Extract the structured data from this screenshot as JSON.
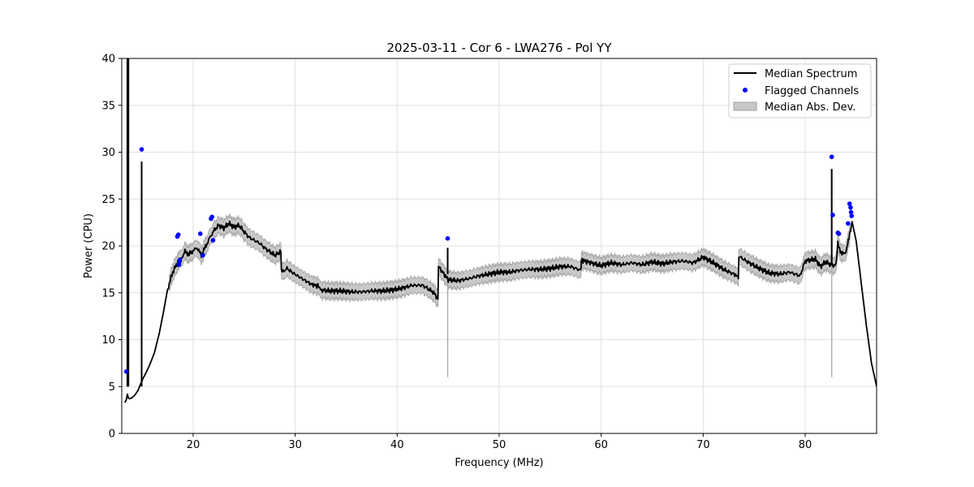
{
  "chart_data": {
    "type": "line",
    "title": "2025-03-11 - Cor 6 - LWA276 - Pol YY",
    "xlabel": "Frequency (MHz)",
    "ylabel": "Power (CPU)",
    "xlim": [
      13,
      87
    ],
    "ylim": [
      0,
      40
    ],
    "xticks": [
      20,
      30,
      40,
      50,
      60,
      70,
      80
    ],
    "yticks": [
      0,
      5,
      10,
      15,
      20,
      25,
      30,
      35,
      40
    ],
    "grid": true,
    "legend_position": "top-right",
    "colors": {
      "median": "#000000",
      "flagged": "#0000ff",
      "mad_fill": "#c8c8c8",
      "mad_edge": "#a0a0a0",
      "grid": "#e0e0e0"
    },
    "series": [
      {
        "name": "Median Spectrum",
        "kind": "line",
        "x": [
          13.3,
          13.45,
          13.55,
          13.65,
          13.75,
          14.0,
          14.3,
          14.6,
          14.85,
          15.0,
          15.05,
          15.3,
          15.7,
          16.2,
          16.7,
          17.1,
          17.5,
          18.0,
          18.5,
          18.8,
          19.2,
          19.6,
          20.0,
          20.4,
          20.8,
          21.2,
          21.6,
          22.0,
          22.5,
          23.0,
          23.5,
          24.0,
          24.5,
          25.0,
          25.5,
          26.0,
          26.5,
          27.0,
          27.5,
          28.0,
          28.6,
          28.65,
          29.2,
          29.8,
          30.4,
          31.0,
          31.6,
          32.3,
          32.5,
          33.5,
          34.5,
          35.5,
          36.5,
          37.5,
          38.5,
          39.5,
          40.5,
          41.5,
          42.5,
          43.5,
          44.0,
          44.05,
          45.0,
          46.0,
          47.0,
          48.0,
          49.0,
          50.0,
          51.0,
          52.0,
          53.0,
          54.0,
          55.0,
          56.0,
          57.0,
          58.0,
          58.05,
          59.0,
          60.0,
          61.0,
          62.0,
          63.0,
          64.0,
          65.0,
          66.0,
          67.0,
          68.0,
          69.0,
          70.0,
          71.0,
          72.0,
          73.0,
          73.45,
          73.5,
          74.5,
          75.5,
          76.5,
          77.5,
          78.5,
          79.5,
          80.0,
          81.0,
          81.5,
          82.0,
          82.5,
          83.0,
          83.2,
          83.6,
          84.0,
          84.3,
          84.6,
          85.0,
          85.5,
          86.0,
          86.5,
          87.0
        ],
        "values": [
          3.3,
          3.6,
          4.2,
          3.8,
          3.7,
          3.8,
          4.1,
          4.6,
          5.3,
          5.6,
          5.8,
          6.3,
          7.2,
          8.6,
          10.8,
          13.0,
          15.4,
          17.2,
          18.3,
          18.6,
          19.4,
          19.1,
          19.5,
          19.8,
          19.0,
          19.9,
          20.8,
          21.6,
          22.2,
          21.9,
          22.4,
          22.0,
          22.2,
          21.5,
          20.9,
          20.6,
          20.3,
          19.8,
          19.4,
          19.0,
          19.4,
          17.2,
          17.6,
          17.1,
          16.7,
          16.3,
          15.9,
          15.7,
          15.3,
          15.2,
          15.2,
          15.1,
          15.1,
          15.2,
          15.2,
          15.3,
          15.5,
          15.8,
          15.8,
          15.1,
          14.4,
          17.8,
          16.4,
          16.3,
          16.5,
          16.8,
          17.0,
          17.2,
          17.2,
          17.4,
          17.5,
          17.5,
          17.6,
          17.8,
          17.8,
          17.4,
          18.5,
          18.2,
          17.9,
          18.2,
          18.0,
          18.2,
          18.0,
          18.3,
          18.1,
          18.3,
          18.4,
          18.2,
          18.8,
          18.2,
          17.5,
          17.0,
          16.7,
          18.9,
          18.2,
          17.6,
          17.1,
          17.0,
          17.2,
          16.8,
          18.4,
          18.6,
          17.8,
          18.3,
          18.0,
          17.9,
          20.2,
          19.1,
          19.4,
          20.8,
          22.6,
          20.5,
          16.0,
          11.5,
          7.5,
          5.0
        ]
      },
      {
        "name": "Flagged Channels",
        "kind": "scatter",
        "x": [
          13.45,
          14.95,
          18.45,
          18.55,
          18.6,
          18.65,
          18.7,
          20.7,
          20.95,
          21.75,
          21.85,
          21.95,
          44.95,
          82.6,
          82.7,
          83.2,
          83.3,
          84.2,
          84.35,
          84.45,
          84.5,
          84.55
        ],
        "values": [
          6.6,
          30.3,
          21.0,
          21.2,
          18.0,
          18.3,
          18.5,
          21.3,
          19.0,
          22.9,
          23.1,
          20.6,
          20.8,
          29.5,
          23.3,
          21.4,
          21.3,
          22.4,
          24.5,
          24.1,
          23.6,
          23.2
        ]
      },
      {
        "name": "Median Abs. Dev.",
        "kind": "band",
        "halfwidth": 0.85
      }
    ],
    "spikes": [
      {
        "x": 13.55,
        "top": 40
      },
      {
        "x": 13.65,
        "top": 40
      },
      {
        "x": 14.95,
        "top": 29.0
      },
      {
        "x": 44.95,
        "top": 19.8
      },
      {
        "x": 82.6,
        "top": 28.2
      }
    ]
  }
}
